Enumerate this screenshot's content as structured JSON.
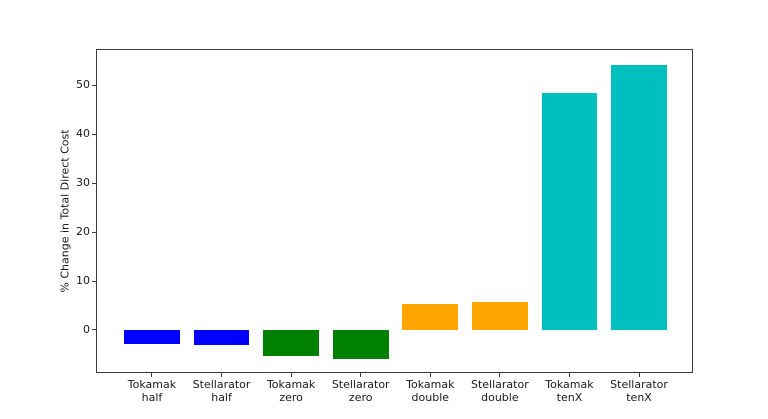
{
  "chart_data": {
    "type": "bar",
    "title": "",
    "xlabel": "",
    "ylabel": "% Change in Total Direct Cost",
    "categories": [
      "Tokamak\nhalf",
      "Stellarator\nhalf",
      "Tokamak\nzero",
      "Stellarator\nzero",
      "Tokamak\ndouble",
      "Stellarator\ndouble",
      "Tokamak\ntenX",
      "Stellarator\ntenX"
    ],
    "values": [
      -2.8,
      -3.1,
      -5.3,
      -6.0,
      5.3,
      5.8,
      48.5,
      54.2
    ],
    "bar_colors": [
      "#0000ff",
      "#0000ff",
      "#008000",
      "#008000",
      "#ffa500",
      "#ffa500",
      "#00bfbf",
      "#00bfbf"
    ],
    "ylim": [
      -9.0,
      57.2
    ],
    "yticks": [
      "0",
      "10",
      "20",
      "30",
      "40",
      "50"
    ],
    "bar_width_frac": 0.8,
    "x_margin_frac": 0.05,
    "grid": false,
    "legend": "none",
    "background": "#ffffff",
    "spine_color": "#3a3a3a",
    "text_color": "#1a1a1a"
  }
}
